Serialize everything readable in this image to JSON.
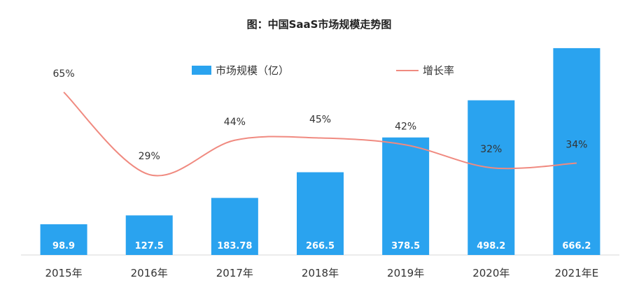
{
  "chart_data": {
    "type": "bar",
    "title": "图：中国SaaS市场规模走势图",
    "categories": [
      "2015年",
      "2016年",
      "2017年",
      "2018年",
      "2019年",
      "2020年",
      "2021年E"
    ],
    "series": [
      {
        "name": "市场规模（亿）",
        "type": "bar",
        "color": "#2aa3ef",
        "values": [
          98.9,
          127.5,
          183.78,
          266.5,
          378.5,
          498.2,
          666.2
        ],
        "labels": [
          "98.9",
          "127.5",
          "183.78",
          "266.5",
          "378.5",
          "498.2",
          "666.2"
        ]
      },
      {
        "name": "增长率",
        "type": "line",
        "color": "#f08a80",
        "values": [
          65,
          29,
          44,
          45,
          42,
          32,
          34
        ],
        "labels": [
          "65%",
          "29%",
          "44%",
          "45%",
          "42%",
          "32%",
          "34%"
        ]
      }
    ],
    "bar_range": [
      0,
      720
    ],
    "rate_range": [
      0,
      90
    ],
    "legend_position": "top-center",
    "grid": false
  }
}
